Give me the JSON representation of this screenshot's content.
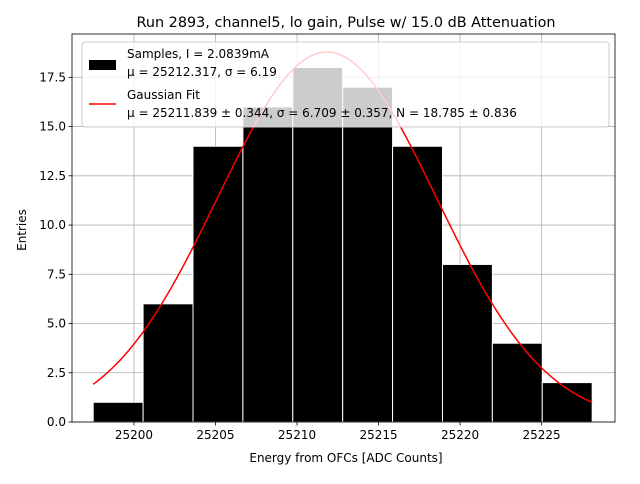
{
  "chart_data": {
    "type": "bar",
    "title": "Run 2893, channel5, lo gain, Pulse w/ 15.0 dB Attenuation",
    "xlabel": "Energy from OFCs [ADC Counts]",
    "ylabel": "Entries",
    "xlim": [
      25196.2,
      25229.5
    ],
    "ylim": [
      0,
      19.7
    ],
    "grid": true,
    "legend_placement": "top-left",
    "x_ticks": [
      {
        "value": 25200,
        "label": "25200"
      },
      {
        "value": 25205,
        "label": "25205"
      },
      {
        "value": 25210,
        "label": "25210"
      },
      {
        "value": 25215,
        "label": "25215"
      },
      {
        "value": 25220,
        "label": "25220"
      },
      {
        "value": 25225,
        "label": "25225"
      }
    ],
    "y_ticks": [
      {
        "value": 0,
        "label": "0.0"
      },
      {
        "value": 2.5,
        "label": "2.5"
      },
      {
        "value": 5,
        "label": "5.0"
      },
      {
        "value": 7.5,
        "label": "7.5"
      },
      {
        "value": 10,
        "label": "10.0"
      },
      {
        "value": 12.5,
        "label": "12.5"
      },
      {
        "value": 15,
        "label": "15.0"
      },
      {
        "value": 17.5,
        "label": "17.5"
      }
    ],
    "histogram": {
      "bin_edges": [
        25197.5,
        25200.56,
        25203.62,
        25206.68,
        25209.74,
        25212.8,
        25215.86,
        25218.92,
        25221.98,
        25225.04,
        25228.1
      ],
      "counts": [
        1,
        6,
        14,
        16,
        18,
        17,
        14,
        8,
        4,
        2
      ],
      "color": "#000000",
      "edge_color": "#ffffff"
    },
    "fit": {
      "mu": 25211.839,
      "sigma": 6.709,
      "N": 18.785,
      "x_range": [
        25197.5,
        25228.1
      ],
      "color": "#ff0000"
    },
    "series": [
      {
        "name_line1": "Samples, I = 2.0839mA",
        "name_line2": "μ = 25212.317, σ = 6.19",
        "kind": "bar"
      },
      {
        "name_line1": "Gaussian Fit",
        "name_line2": "μ = 25211.839 ± 0.344, σ = 6.709 ± 0.357, N = 18.785 ± 0.836",
        "kind": "line"
      }
    ]
  }
}
